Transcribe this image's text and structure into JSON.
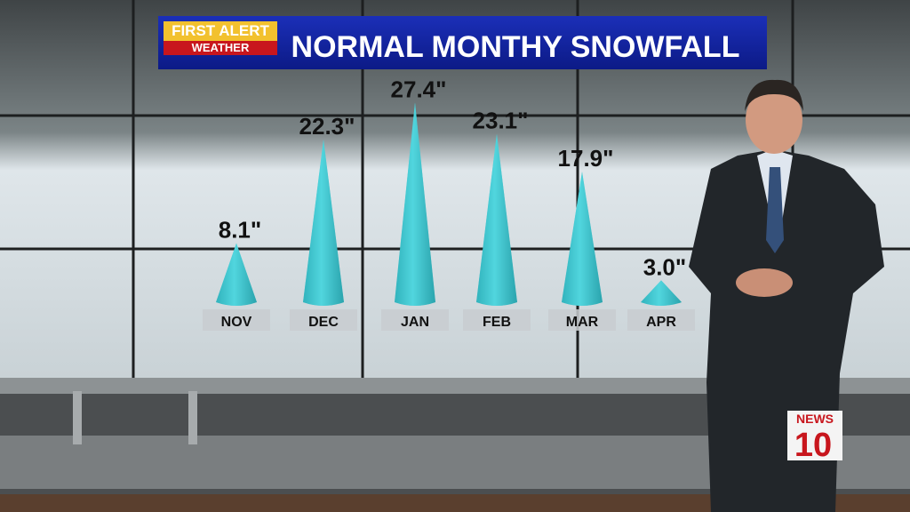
{
  "branding": {
    "first_alert": "FIRST ALERT",
    "weather": "WEATHER",
    "station_news": "NEWS",
    "station_number": "10"
  },
  "chart_data": {
    "type": "cone",
    "title": "NORMAL MONTHY SNOWFALL",
    "categories": [
      "NOV",
      "DEC",
      "JAN",
      "FEB",
      "MAR",
      "APR"
    ],
    "values": [
      8.1,
      22.3,
      27.4,
      23.1,
      17.9,
      3.0
    ],
    "value_labels": [
      "8.1\"",
      "22.3\"",
      "27.4\"",
      "23.1\"",
      "17.9\"",
      "3.0\""
    ],
    "color": "#3cc6cf"
  }
}
